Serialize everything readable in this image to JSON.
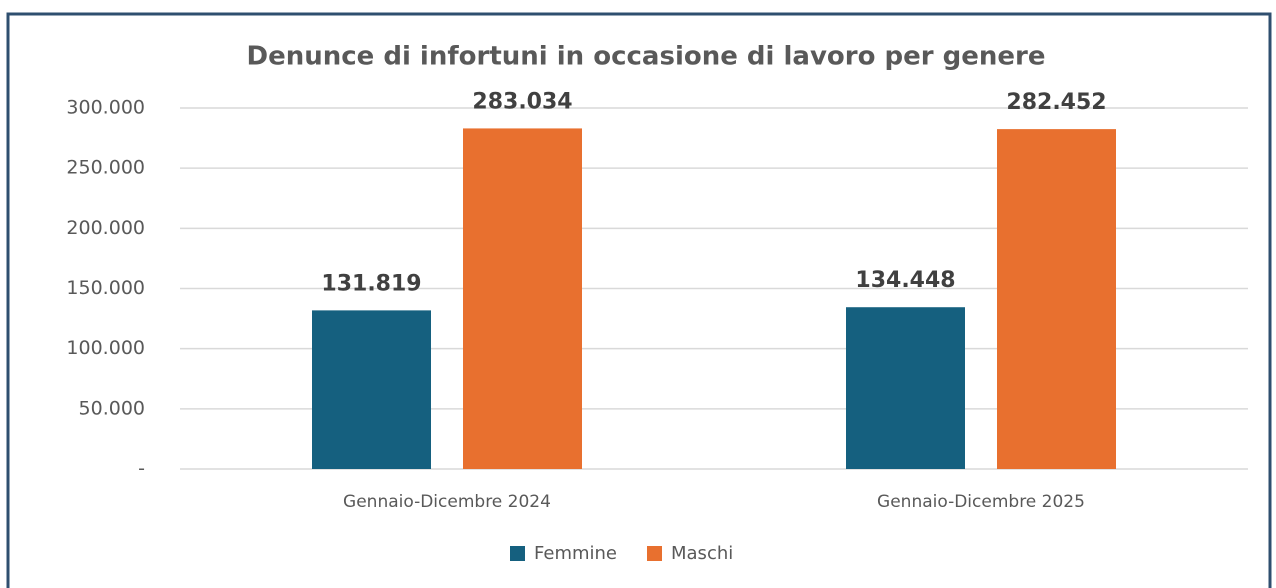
{
  "chart_data": {
    "type": "bar",
    "title": "Denunce di infortuni in occasione di lavoro per genere",
    "categories": [
      "Gennaio-Dicembre 2024",
      "Gennaio-Dicembre 2025"
    ],
    "series": [
      {
        "name": "Femmine",
        "color": "#15607f",
        "values": [
          131819,
          134448
        ],
        "value_labels": [
          "131.819",
          "134.448"
        ]
      },
      {
        "name": "Maschi",
        "color": "#e8702f",
        "values": [
          283034,
          282452
        ],
        "value_labels": [
          "283.034",
          "282.452"
        ]
      }
    ],
    "ylim": [
      0,
      300000
    ],
    "yticks": [
      {
        "value": 0,
        "label": "-"
      },
      {
        "value": 50000,
        "label": "50.000"
      },
      {
        "value": 100000,
        "label": "100.000"
      },
      {
        "value": 150000,
        "label": "150.000"
      },
      {
        "value": 200000,
        "label": "200.000"
      },
      {
        "value": 250000,
        "label": "250.000"
      },
      {
        "value": 300000,
        "label": "300.000"
      }
    ],
    "grid": true,
    "legend": "bottom"
  }
}
